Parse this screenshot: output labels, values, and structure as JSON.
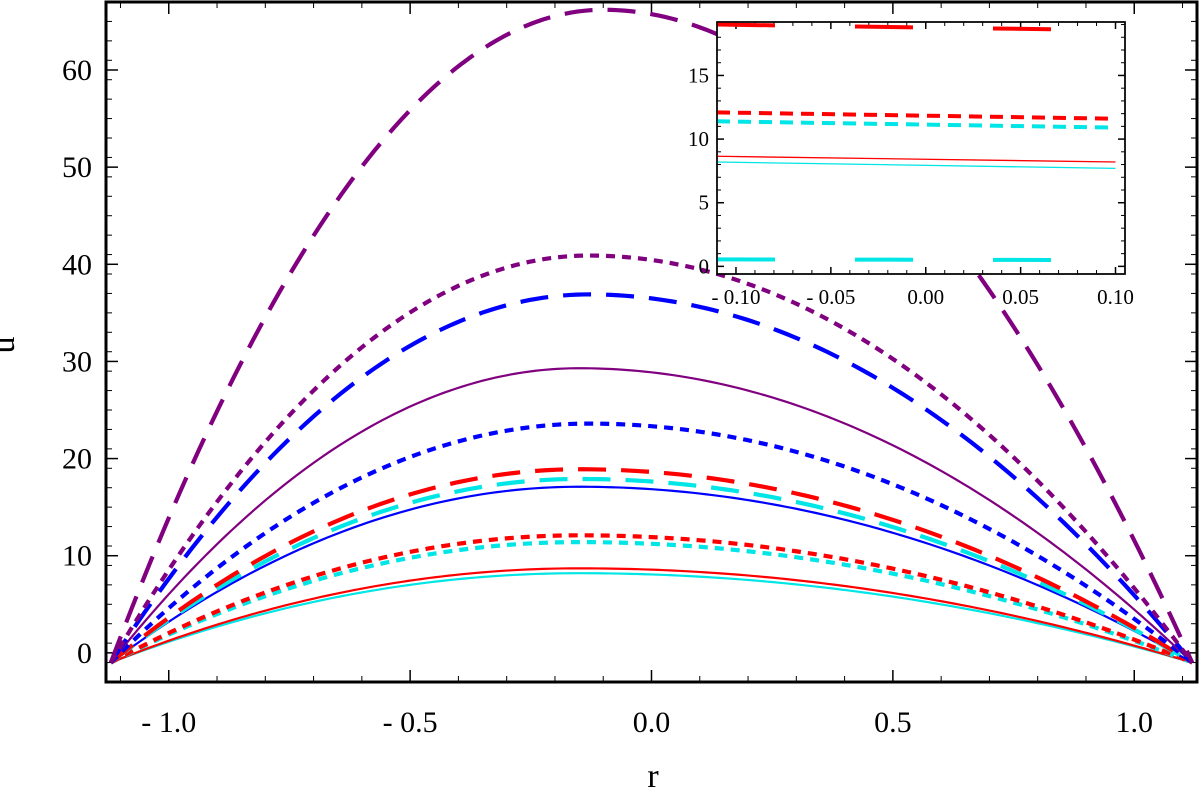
{
  "chart_data": [
    {
      "type": "line",
      "title": "",
      "xlabel": "r",
      "ylabel": "u",
      "xlim": [
        -1.13,
        1.13
      ],
      "ylim": [
        -3,
        67
      ],
      "grid": false,
      "legend": "none",
      "x_ticks": [
        -1.0,
        -0.5,
        0.0,
        0.5,
        1.0
      ],
      "x_tick_labels": [
        "- 1.0",
        "- 0.5",
        "0.0",
        "0.5",
        "1.0"
      ],
      "y_ticks": [
        0,
        10,
        20,
        30,
        40,
        50,
        60
      ],
      "y_tick_labels": [
        "0",
        "10",
        "20",
        "30",
        "40",
        "50",
        "60"
      ],
      "profile_model": "parabolic profile between walls at r = -1.12 (u = -1) and r = 1.12 (u = -1), peak at r_peak",
      "wall_r": [
        -1.12,
        1.12
      ],
      "wall_u": -1,
      "series": [
        {
          "color": "#00e5e5",
          "dash": "solid",
          "r_peak": -0.15,
          "u_peak": 8.2
        },
        {
          "color": "#ff0000",
          "dash": "solid",
          "r_peak": -0.15,
          "u_peak": 8.7
        },
        {
          "color": "#00e5e5",
          "dash": "short",
          "r_peak": -0.15,
          "u_peak": 11.4
        },
        {
          "color": "#ff0000",
          "dash": "short",
          "r_peak": -0.15,
          "u_peak": 12.1
        },
        {
          "color": "#0000ff",
          "dash": "solid",
          "r_peak": -0.15,
          "u_peak": 17.1
        },
        {
          "color": "#00e5e5",
          "dash": "long",
          "r_peak": -0.15,
          "u_peak": 17.9
        },
        {
          "color": "#ff0000",
          "dash": "long",
          "r_peak": -0.15,
          "u_peak": 18.9
        },
        {
          "color": "#0000ff",
          "dash": "short",
          "r_peak": -0.13,
          "u_peak": 23.6
        },
        {
          "color": "#800080",
          "dash": "solid",
          "r_peak": -0.15,
          "u_peak": 29.3
        },
        {
          "color": "#0000ff",
          "dash": "long",
          "r_peak": -0.13,
          "u_peak": 36.9
        },
        {
          "color": "#800080",
          "dash": "short",
          "r_peak": -0.13,
          "u_peak": 40.9
        },
        {
          "color": "#800080",
          "dash": "long",
          "r_peak": -0.1,
          "u_peak": 66.2
        }
      ]
    },
    {
      "type": "line",
      "title": "",
      "xlabel": "",
      "ylabel": "",
      "xlim": [
        -0.11,
        0.105
      ],
      "ylim": [
        -0.6,
        19.2
      ],
      "grid": false,
      "legend": "none",
      "x_ticks": [
        -0.1,
        -0.05,
        0.0,
        0.05,
        0.1
      ],
      "x_tick_labels": [
        "- 0.10",
        "- 0.05",
        "0.00",
        "0.05",
        "0.10"
      ],
      "y_ticks": [
        0,
        5,
        10,
        15
      ],
      "y_tick_labels": [
        "0",
        "5",
        "10",
        "15"
      ],
      "series": [
        {
          "color": "#00e5e5",
          "dash": "long",
          "x": [
            -0.11,
            0.08
          ],
          "y": [
            0.55,
            0.5
          ]
        },
        {
          "color": "#00e5e5",
          "dash": "solid",
          "x": [
            -0.11,
            0.1
          ],
          "y": [
            8.2,
            7.7
          ]
        },
        {
          "color": "#ff0000",
          "dash": "solid",
          "x": [
            -0.11,
            0.1
          ],
          "y": [
            8.65,
            8.2
          ]
        },
        {
          "color": "#00e5e5",
          "dash": "short",
          "x": [
            -0.11,
            0.1
          ],
          "y": [
            11.4,
            10.9
          ]
        },
        {
          "color": "#ff0000",
          "dash": "short",
          "x": [
            -0.11,
            0.1
          ],
          "y": [
            12.1,
            11.6
          ]
        },
        {
          "color": "#ff0000",
          "dash": "long",
          "x": [
            -0.11,
            0.08
          ],
          "y": [
            19.0,
            18.6
          ]
        }
      ]
    }
  ]
}
